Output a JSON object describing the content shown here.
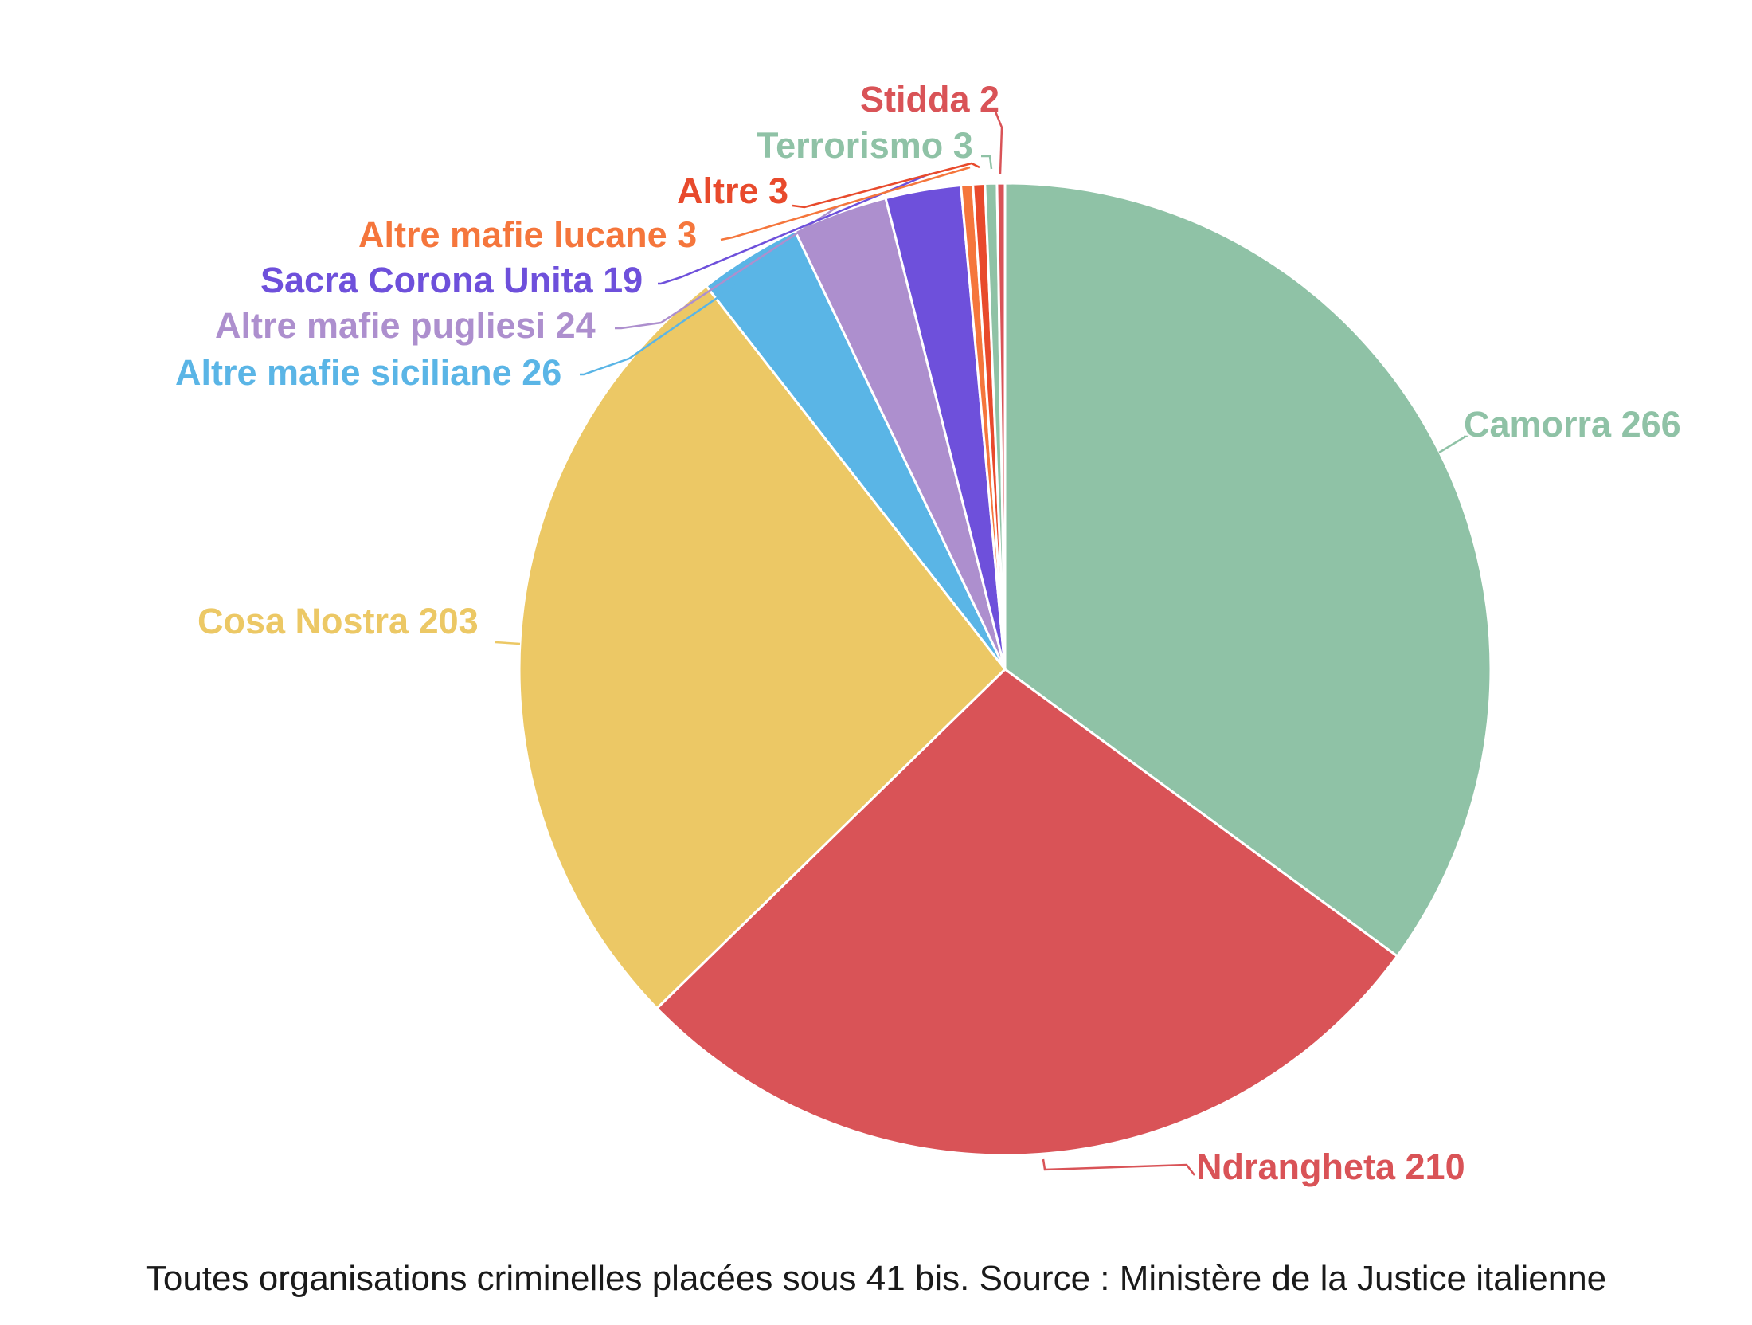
{
  "chart_data": {
    "type": "pie",
    "title": "",
    "start_angle_deg": 0,
    "direction": "clockwise",
    "slices": [
      {
        "label": "Camorra 266",
        "name": "Camorra",
        "value": 266,
        "color": "#8fc2a6"
      },
      {
        "label": "Ndrangheta 210",
        "name": "Ndrangheta",
        "value": 210,
        "color": "#d95357"
      },
      {
        "label": "Cosa Nostra 203",
        "name": "Cosa Nostra",
        "value": 203,
        "color": "#ecc865"
      },
      {
        "label": "Altre mafie siciliane 26",
        "name": "Altre mafie siciliane",
        "value": 26,
        "color": "#5ab5e6"
      },
      {
        "label": "Altre mafie pugliesi 24",
        "name": "Altre mafie pugliesi",
        "value": 24,
        "color": "#ad8fce"
      },
      {
        "label": "Sacra Corona Unita 19",
        "name": "Sacra Corona Unita",
        "value": 19,
        "color": "#6e50db"
      },
      {
        "label": "Altre mafie lucane 3",
        "name": "Altre mafie lucane",
        "value": 3,
        "color": "#f5763c"
      },
      {
        "label": "Altre 3",
        "name": "Altre",
        "value": 3,
        "color": "#e84a2c"
      },
      {
        "label": "Terrorismo 3",
        "name": "Terrorismo",
        "value": 3,
        "color": "#8fc2a6"
      },
      {
        "label": "Stidda 2",
        "name": "Stidda",
        "value": 2,
        "color": "#d95357"
      }
    ]
  },
  "caption": "Toutes organisations criminelles placées sous 41 bis. Source : Ministère de la Justice italienne"
}
